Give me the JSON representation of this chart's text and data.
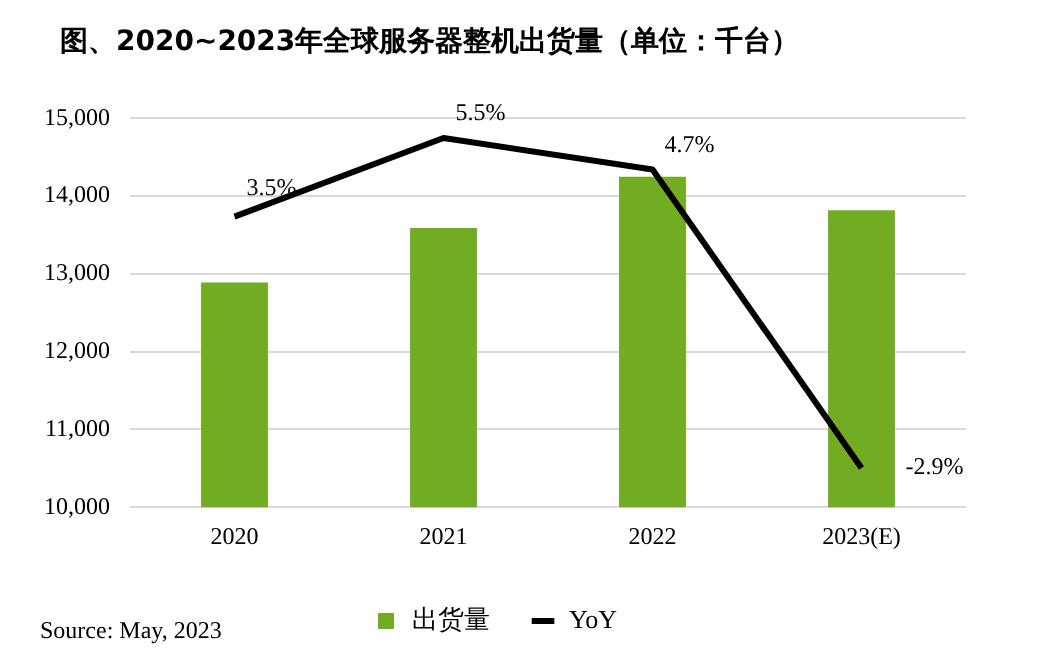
{
  "chart_data": {
    "type": "bar",
    "title": "图、2020~2023年全球服务器整机出货量（单位：千台）",
    "categories": [
      "2020",
      "2021",
      "2022",
      "2023(E)"
    ],
    "series": [
      {
        "name": "出货量",
        "color": "#72ac22",
        "values": [
          12890,
          13590,
          14250,
          13820
        ]
      },
      {
        "name": "YoY",
        "type": "line",
        "axis": "y2",
        "color": "#000000",
        "values": [
          3.5,
          5.5,
          4.7,
          -2.9
        ],
        "value_labels": [
          "3.5%",
          "5.5%",
          "4.7%",
          "-2.9%"
        ]
      }
    ],
    "ylim": [
      10000,
      15000
    ],
    "yticks": [
      {
        "value": 10000,
        "label": "10,000"
      },
      {
        "value": 11000,
        "label": "11,000"
      },
      {
        "value": 12000,
        "label": "12,000"
      },
      {
        "value": 13000,
        "label": "13,000"
      },
      {
        "value": 14000,
        "label": "14,000"
      },
      {
        "value": 15000,
        "label": "15,000"
      }
    ],
    "y2lim": [
      -3.9,
      6
    ],
    "grid": "y",
    "legend": "bottom",
    "marker": "none",
    "line_style": "solid",
    "annotations": [
      "Source: May, 2023"
    ]
  }
}
